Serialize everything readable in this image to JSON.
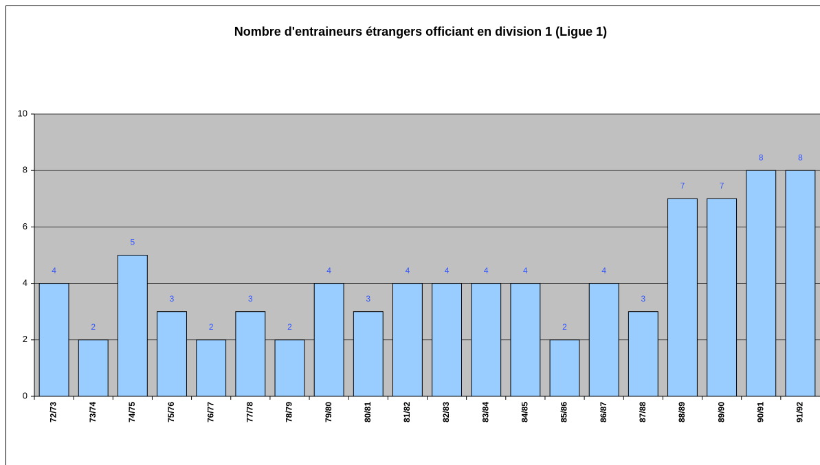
{
  "chart_data": {
    "type": "bar",
    "title": "Nombre d'entraineurs étrangers officiant  en division 1 (Ligue 1)",
    "categories": [
      "72/73",
      "73/74",
      "74/75",
      "75/76",
      "76/77",
      "77/78",
      "78/79",
      "79/80",
      "80/81",
      "81/82",
      "82/83",
      "83/84",
      "84/85",
      "85/86",
      "86/87",
      "87/88",
      "88/89",
      "89/90",
      "90/91",
      "91/92"
    ],
    "values": [
      4,
      2,
      5,
      3,
      2,
      3,
      2,
      4,
      3,
      4,
      4,
      4,
      4,
      2,
      4,
      3,
      7,
      7,
      8,
      8
    ],
    "color": "#99ccff",
    "ylim": [
      0,
      10
    ],
    "yticks": [
      0,
      2,
      4,
      6,
      8,
      10
    ],
    "grid": true
  }
}
